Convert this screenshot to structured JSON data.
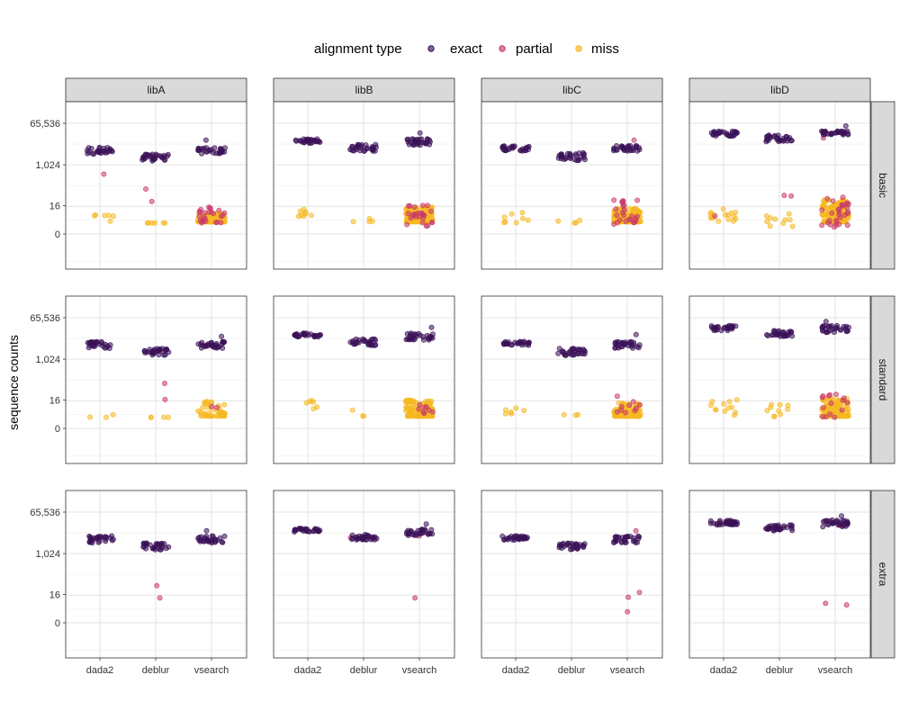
{
  "chart_data": {
    "type": "scatter",
    "subtype": "faceted jittered strip plot",
    "ylabel": "sequence counts",
    "y_scale": "log2(x+1) style, labelled ticks",
    "y_ticks": [
      "0",
      "16",
      "1,024",
      "65,536"
    ],
    "y_tick_values": [
      0,
      16,
      1024,
      65536
    ],
    "categories": [
      "dada2",
      "deblur",
      "vsearch"
    ],
    "columns": [
      "libA",
      "libB",
      "libC",
      "libD"
    ],
    "rows": [
      "basic",
      "standard",
      "extra"
    ],
    "legend": {
      "title": "alignment type",
      "position": "top",
      "entries": [
        {
          "name": "exact",
          "color": "#3b1158"
        },
        {
          "name": "partial",
          "color": "#c8396a"
        },
        {
          "name": "miss",
          "color": "#f6b821"
        }
      ]
    },
    "grid": true,
    "point_alpha": 0.6,
    "panels": {
      "basic": {
        "libA": {
          "exact": {
            "dada2": [
              [
                28,
                3000,
                6000
              ]
            ],
            "deblur": [
              [
                30,
                1500,
                3000
              ]
            ],
            "vsearch": [
              [
                30,
                3000,
                6000
              ],
              [
                1,
                12000,
                12000
              ]
            ]
          },
          "partial": {
            "dada2": [
              [
                1,
                400,
                400
              ]
            ],
            "deblur": [
              [
                1,
                90,
                90
              ],
              [
                1,
                25,
                25
              ]
            ],
            "vsearch": [
              [
                25,
                2,
                14
              ]
            ]
          },
          "miss": {
            "dada2": [
              [
                6,
                2,
                8
              ]
            ],
            "deblur": [
              [
                6,
                2,
                2
              ]
            ],
            "vsearch": [
              [
                150,
                0.3,
                7
              ]
            ]
          }
        },
        "libB": {
          "exact": {
            "dada2": [
              [
                30,
                9000,
                14000
              ]
            ],
            "deblur": [
              [
                30,
                4000,
                8000
              ]
            ],
            "vsearch": [
              [
                30,
                7000,
                14000
              ],
              [
                1,
                25000,
                25000
              ]
            ]
          },
          "partial": {
            "dada2": [
              [
                2,
                9000,
                12000
              ]
            ],
            "deblur": [
              [
                1,
                5000,
                5000
              ]
            ],
            "vsearch": [
              [
                25,
                1,
                18
              ]
            ]
          },
          "miss": {
            "dada2": [
              [
                8,
                4,
                12
              ]
            ],
            "deblur": [
              [
                4,
                0.8,
                4
              ]
            ],
            "vsearch": [
              [
                160,
                0.3,
                14
              ]
            ]
          }
        },
        "libC": {
          "exact": {
            "dada2": [
              [
                28,
                4000,
                7000
              ]
            ],
            "deblur": [
              [
                30,
                1500,
                3500
              ]
            ],
            "vsearch": [
              [
                30,
                4000,
                7000
              ]
            ]
          },
          "partial": {
            "dada2": [],
            "deblur": [],
            "vsearch": [
              [
                25,
                1,
                30
              ],
              [
                1,
                12000,
                12000
              ]
            ]
          },
          "miss": {
            "dada2": [
              [
                8,
                2,
                8
              ]
            ],
            "deblur": [
              [
                4,
                2,
                3
              ]
            ],
            "vsearch": [
              [
                160,
                0.3,
                12
              ]
            ]
          }
        },
        "libD": {
          "exact": {
            "dada2": [
              [
                30,
                18000,
                30000
              ]
            ],
            "deblur": [
              [
                30,
                10000,
                20000
              ]
            ],
            "vsearch": [
              [
                30,
                20000,
                30000
              ],
              [
                1,
                50000,
                50000
              ]
            ]
          },
          "partial": {
            "dada2": [
              [
                1,
                5,
                5
              ]
            ],
            "deblur": [
              [
                2,
                40,
                60
              ]
            ],
            "vsearch": [
              [
                30,
                1,
                40
              ],
              [
                2,
                15000,
                25000
              ]
            ]
          },
          "miss": {
            "dada2": [
              [
                16,
                2,
                12
              ]
            ],
            "deblur": [
              [
                10,
                1,
                8
              ]
            ],
            "vsearch": [
              [
                160,
                0.3,
                30
              ]
            ]
          }
        }
      },
      "standard": {
        "libA": {
          "exact": {
            "dada2": [
              [
                28,
                3000,
                6000
              ]
            ],
            "deblur": [
              [
                30,
                1500,
                3000
              ]
            ],
            "vsearch": [
              [
                30,
                3000,
                6000
              ],
              [
                1,
                10000,
                10000
              ]
            ]
          },
          "partial": {
            "dada2": [],
            "deblur": [
              [
                1,
                90,
                90
              ],
              [
                1,
                17,
                17
              ]
            ],
            "vsearch": [
              [
                2,
                5,
                8
              ]
            ]
          },
          "miss": {
            "dada2": [
              [
                3,
                2,
                3
              ]
            ],
            "deblur": [
              [
                4,
                2,
                2
              ]
            ],
            "vsearch": [
              [
                45,
                0.3,
                14
              ]
            ]
          }
        },
        "libB": {
          "exact": {
            "dada2": [
              [
                30,
                9000,
                14000
              ]
            ],
            "deblur": [
              [
                30,
                4000,
                8000
              ]
            ],
            "vsearch": [
              [
                30,
                7000,
                14000
              ],
              [
                1,
                25000,
                25000
              ]
            ]
          },
          "partial": {
            "dada2": [],
            "deblur": [],
            "vsearch": [
              [
                8,
                3,
                16
              ]
            ]
          },
          "miss": {
            "dada2": [
              [
                6,
                6,
                16
              ]
            ],
            "deblur": [
              [
                3,
                0.8,
                6
              ]
            ],
            "vsearch": [
              [
                130,
                0.3,
                16
              ]
            ]
          }
        },
        "libC": {
          "exact": {
            "dada2": [
              [
                28,
                4000,
                6000
              ]
            ],
            "deblur": [
              [
                30,
                1500,
                3000
              ]
            ],
            "vsearch": [
              [
                30,
                3000,
                6000
              ],
              [
                1,
                12000,
                12000
              ]
            ]
          },
          "partial": {
            "dada2": [],
            "deblur": [],
            "vsearch": [
              [
                10,
                3,
                30
              ]
            ]
          },
          "miss": {
            "dada2": [
              [
                6,
                3,
                8
              ]
            ],
            "deblur": [
              [
                3,
                2,
                3
              ]
            ],
            "vsearch": [
              [
                120,
                0.3,
                12
              ]
            ]
          }
        },
        "libD": {
          "exact": {
            "dada2": [
              [
                30,
                18000,
                30000
              ]
            ],
            "deblur": [
              [
                30,
                10000,
                18000
              ]
            ],
            "vsearch": [
              [
                30,
                15000,
                30000
              ],
              [
                1,
                45000,
                45000
              ]
            ]
          },
          "partial": {
            "dada2": [],
            "deblur": [],
            "vsearch": [
              [
                15,
                2,
                30
              ]
            ]
          },
          "miss": {
            "dada2": [
              [
                12,
                2,
                20
              ]
            ],
            "deblur": [
              [
                10,
                2,
                10
              ]
            ],
            "vsearch": [
              [
                150,
                0.3,
                20
              ]
            ]
          }
        }
      },
      "extra": {
        "libA": {
          "exact": {
            "dada2": [
              [
                30,
                3000,
                6000
              ]
            ],
            "deblur": [
              [
                30,
                1500,
                3000
              ]
            ],
            "vsearch": [
              [
                30,
                3000,
                6000
              ],
              [
                1,
                10000,
                10000
              ]
            ]
          },
          "partial": {
            "dada2": [],
            "deblur": [
              [
                1,
                40,
                40
              ],
              [
                1,
                11,
                11
              ]
            ],
            "vsearch": [
              [
                2,
                3000,
                5000
              ]
            ]
          },
          "miss": {
            "dada2": [],
            "deblur": [],
            "vsearch": []
          }
        },
        "libB": {
          "exact": {
            "dada2": [
              [
                30,
                9000,
                13000
              ]
            ],
            "deblur": [
              [
                30,
                4000,
                7000
              ]
            ],
            "vsearch": [
              [
                30,
                6000,
                12000
              ],
              [
                1,
                20000,
                20000
              ]
            ]
          },
          "partial": {
            "dada2": [],
            "deblur": [
              [
                1,
                5000,
                5000
              ]
            ],
            "vsearch": [
              [
                1,
                11,
                11
              ],
              [
                2,
                6000,
                8000
              ]
            ]
          },
          "miss": {
            "dada2": [],
            "deblur": [],
            "vsearch": []
          }
        },
        "libC": {
          "exact": {
            "dada2": [
              [
                30,
                4000,
                6000
              ]
            ],
            "deblur": [
              [
                30,
                1500,
                3000
              ]
            ],
            "vsearch": [
              [
                30,
                3000,
                6000
              ]
            ]
          },
          "partial": {
            "dada2": [],
            "deblur": [],
            "vsearch": [
              [
                1,
                10000,
                10000
              ],
              [
                1,
                20,
                20
              ],
              [
                1,
                12,
                12
              ],
              [
                1,
                2,
                2
              ]
            ]
          },
          "miss": {
            "dada2": [],
            "deblur": [],
            "vsearch": []
          }
        },
        "libD": {
          "exact": {
            "dada2": [
              [
                30,
                18000,
                30000
              ]
            ],
            "deblur": [
              [
                30,
                10000,
                18000
              ]
            ],
            "vsearch": [
              [
                30,
                15000,
                30000
              ],
              [
                1,
                45000,
                45000
              ]
            ]
          },
          "partial": {
            "dada2": [
              [
                3,
                20000,
                25000
              ]
            ],
            "deblur": [
              [
                2,
                12000,
                15000
              ]
            ],
            "vsearch": [
              [
                1,
                5,
                5
              ],
              [
                1,
                6,
                6
              ],
              [
                3,
                15000,
                20000
              ]
            ]
          },
          "miss": {
            "dada2": [],
            "deblur": [],
            "vsearch": []
          }
        }
      }
    }
  }
}
